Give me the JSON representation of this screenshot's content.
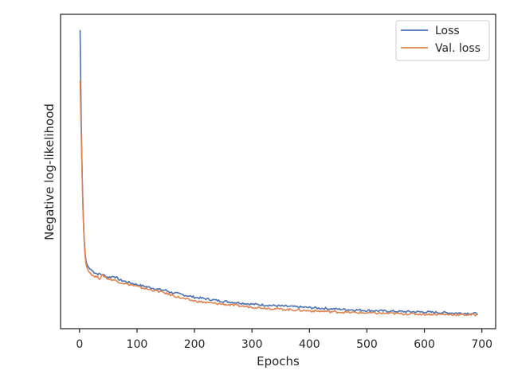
{
  "chart_data": {
    "type": "line",
    "title": "",
    "xlabel": "Epochs",
    "ylabel": "Negative log-likelihood",
    "xlim": [
      -33,
      724
    ],
    "ylim": [
      0,
      100
    ],
    "x_ticks": [
      0,
      100,
      200,
      300,
      400,
      500,
      600,
      700
    ],
    "y_ticks_shown": false,
    "grid": false,
    "legend_position": "top-right",
    "series": [
      {
        "name": "Loss",
        "color": "#4c72b0",
        "x": [
          1,
          2,
          3,
          4,
          5,
          6,
          7,
          8,
          9,
          10,
          11,
          12,
          14,
          16,
          18,
          20,
          25,
          30,
          40,
          50,
          60,
          70,
          80,
          90,
          100,
          120,
          140,
          150,
          160,
          180,
          200,
          220,
          250,
          280,
          300,
          350,
          400,
          450,
          500,
          550,
          600,
          650,
          693
        ],
        "y": [
          95,
          80,
          66,
          55,
          46,
          39,
          33.5,
          29,
          26,
          23.5,
          22,
          21,
          20,
          19.5,
          19,
          18.8,
          18,
          17.5,
          17.2,
          16.3,
          16.7,
          15.5,
          15,
          14.5,
          14,
          13.2,
          12.4,
          12.2,
          11.5,
          10.8,
          10,
          9.5,
          8.7,
          8.2,
          7.8,
          7.2,
          6.7,
          6.2,
          5.8,
          5.5,
          5.3,
          5.0,
          4.8
        ]
      },
      {
        "name": "Val. loss",
        "color": "#dd8452",
        "x": [
          1,
          2,
          3,
          4,
          5,
          6,
          7,
          8,
          9,
          10,
          11,
          12,
          14,
          16,
          18,
          20,
          25,
          30,
          35,
          40,
          50,
          60,
          70,
          80,
          90,
          100,
          120,
          140,
          160,
          180,
          200,
          220,
          250,
          280,
          300,
          350,
          400,
          450,
          500,
          550,
          600,
          650,
          693
        ],
        "y": [
          79,
          70,
          61,
          53,
          45,
          38,
          32.5,
          28,
          25,
          22.5,
          21,
          20,
          19,
          18.2,
          17.8,
          17.4,
          16.8,
          16.5,
          16.0,
          17.0,
          15.8,
          15.5,
          14.8,
          14.3,
          13.9,
          13.4,
          12.5,
          11.8,
          10.7,
          9.6,
          8.8,
          8.3,
          7.8,
          7.2,
          6.9,
          6.2,
          5.7,
          5.3,
          5.0,
          4.8,
          4.6,
          4.5,
          4.4
        ]
      }
    ]
  }
}
